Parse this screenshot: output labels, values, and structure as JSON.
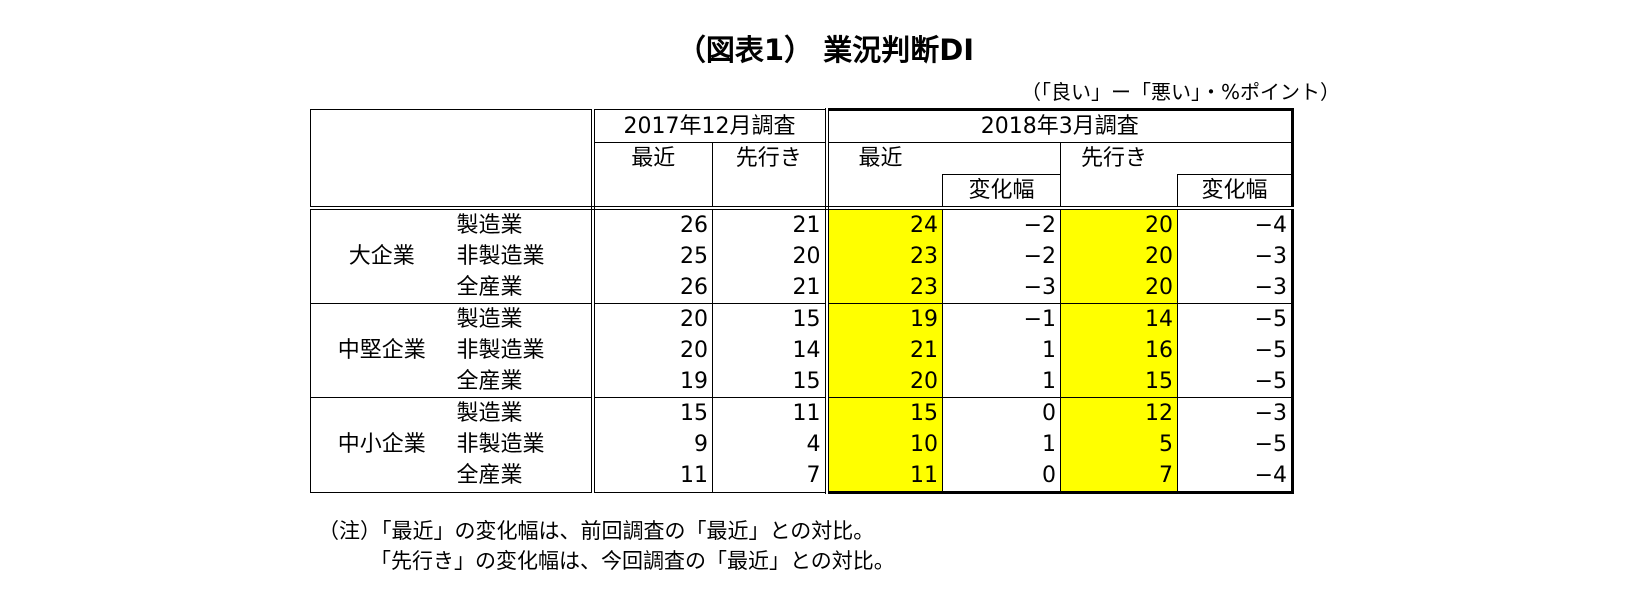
{
  "title": "（図表1） 業況判断DI",
  "unit": "（「良い」ー「悪い」・%ポイント）",
  "header": {
    "survey_prev": "2017年12月調査",
    "survey_curr": "2018年3月調査",
    "recent": "最近",
    "outlook": "先行き",
    "change": "変化幅"
  },
  "groups": [
    {
      "name": "大企業",
      "rows": [
        {
          "industry": "製造業",
          "prev_recent": "26",
          "prev_outlook": "21",
          "curr_recent": "24",
          "curr_recent_change": "−2",
          "curr_outlook": "20",
          "curr_outlook_change": "−4"
        },
        {
          "industry": "非製造業",
          "prev_recent": "25",
          "prev_outlook": "20",
          "curr_recent": "23",
          "curr_recent_change": "−2",
          "curr_outlook": "20",
          "curr_outlook_change": "−3"
        },
        {
          "industry": "全産業",
          "prev_recent": "26",
          "prev_outlook": "21",
          "curr_recent": "23",
          "curr_recent_change": "−3",
          "curr_outlook": "20",
          "curr_outlook_change": "−3"
        }
      ]
    },
    {
      "name": "中堅企業",
      "rows": [
        {
          "industry": "製造業",
          "prev_recent": "20",
          "prev_outlook": "15",
          "curr_recent": "19",
          "curr_recent_change": "−1",
          "curr_outlook": "14",
          "curr_outlook_change": "−5"
        },
        {
          "industry": "非製造業",
          "prev_recent": "20",
          "prev_outlook": "14",
          "curr_recent": "21",
          "curr_recent_change": "1",
          "curr_outlook": "16",
          "curr_outlook_change": "−5"
        },
        {
          "industry": "全産業",
          "prev_recent": "19",
          "prev_outlook": "15",
          "curr_recent": "20",
          "curr_recent_change": "1",
          "curr_outlook": "15",
          "curr_outlook_change": "−5"
        }
      ]
    },
    {
      "name": "中小企業",
      "rows": [
        {
          "industry": "製造業",
          "prev_recent": "15",
          "prev_outlook": "11",
          "curr_recent": "15",
          "curr_recent_change": "0",
          "curr_outlook": "12",
          "curr_outlook_change": "−3"
        },
        {
          "industry": "非製造業",
          "prev_recent": "9",
          "prev_outlook": "4",
          "curr_recent": "10",
          "curr_recent_change": "1",
          "curr_outlook": "5",
          "curr_outlook_change": "−5"
        },
        {
          "industry": "全産業",
          "prev_recent": "11",
          "prev_outlook": "7",
          "curr_recent": "11",
          "curr_recent_change": "0",
          "curr_outlook": "7",
          "curr_outlook_change": "−4"
        }
      ]
    }
  ],
  "highlight_color": "#ffff00",
  "notes": [
    "（注）「最近」の変化幅は、前回調査の「最近」との対比。",
    "「先行き」の変化幅は、今回調査の「最近」との対比。"
  ]
}
